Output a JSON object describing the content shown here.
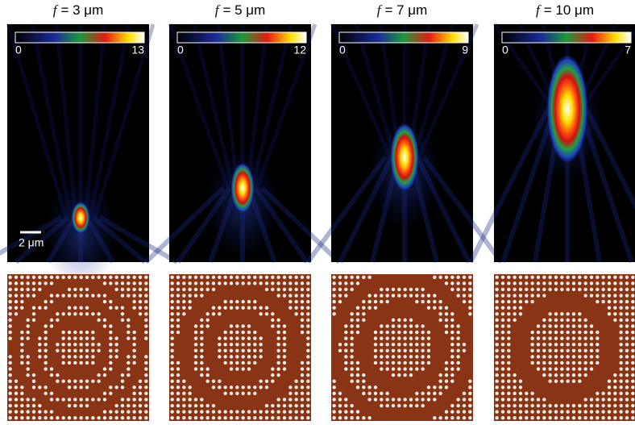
{
  "panels": [
    {
      "title": {
        "variable": "f",
        "text": "= 3 μm"
      },
      "colorbar": {
        "min": "0",
        "max": "13"
      },
      "scale_bar": "2 μm"
    },
    {
      "title": {
        "variable": "f",
        "text": "= 5 μm"
      },
      "colorbar": {
        "min": "0",
        "max": "12"
      }
    },
    {
      "title": {
        "variable": "f",
        "text": "= 7 μm"
      },
      "colorbar": {
        "min": "0",
        "max": "9"
      }
    },
    {
      "title": {
        "variable": "f",
        "text": "= 10 μm"
      },
      "colorbar": {
        "min": "0",
        "max": "7"
      }
    }
  ]
}
